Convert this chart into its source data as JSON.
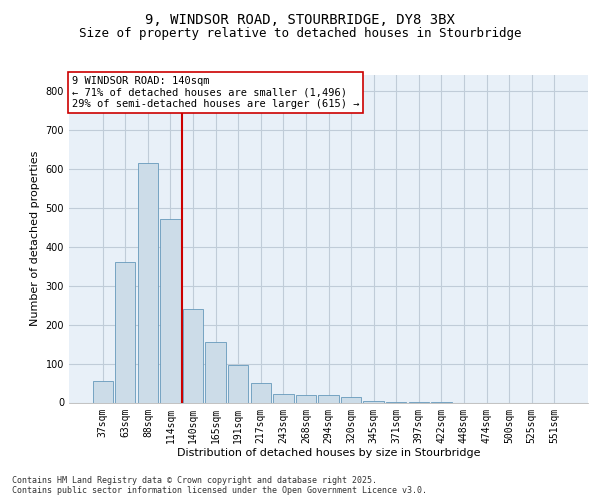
{
  "title_line1": "9, WINDSOR ROAD, STOURBRIDGE, DY8 3BX",
  "title_line2": "Size of property relative to detached houses in Stourbridge",
  "xlabel": "Distribution of detached houses by size in Stourbridge",
  "ylabel": "Number of detached properties",
  "categories": [
    "37sqm",
    "63sqm",
    "88sqm",
    "114sqm",
    "140sqm",
    "165sqm",
    "191sqm",
    "217sqm",
    "243sqm",
    "268sqm",
    "294sqm",
    "320sqm",
    "345sqm",
    "371sqm",
    "397sqm",
    "422sqm",
    "448sqm",
    "474sqm",
    "500sqm",
    "525sqm",
    "551sqm"
  ],
  "values": [
    55,
    360,
    615,
    470,
    240,
    155,
    97,
    50,
    22,
    20,
    20,
    13,
    5,
    2,
    1,
    1,
    0,
    0,
    0,
    0,
    0
  ],
  "bar_color": "#ccdce8",
  "bar_edge_color": "#6699bb",
  "vline_x": 3.5,
  "vline_color": "#cc0000",
  "annotation_text": "9 WINDSOR ROAD: 140sqm\n← 71% of detached houses are smaller (1,496)\n29% of semi-detached houses are larger (615) →",
  "annotation_box_color": "#ffffff",
  "annotation_box_edge": "#cc0000",
  "ylim": [
    0,
    840
  ],
  "yticks": [
    0,
    100,
    200,
    300,
    400,
    500,
    600,
    700,
    800
  ],
  "grid_color": "#c0ccd8",
  "background_color": "#e8f0f8",
  "footer_text": "Contains HM Land Registry data © Crown copyright and database right 2025.\nContains public sector information licensed under the Open Government Licence v3.0.",
  "title_fontsize": 10,
  "subtitle_fontsize": 9,
  "axis_label_fontsize": 8,
  "tick_fontsize": 7,
  "annotation_fontsize": 7.5,
  "footer_fontsize": 6
}
